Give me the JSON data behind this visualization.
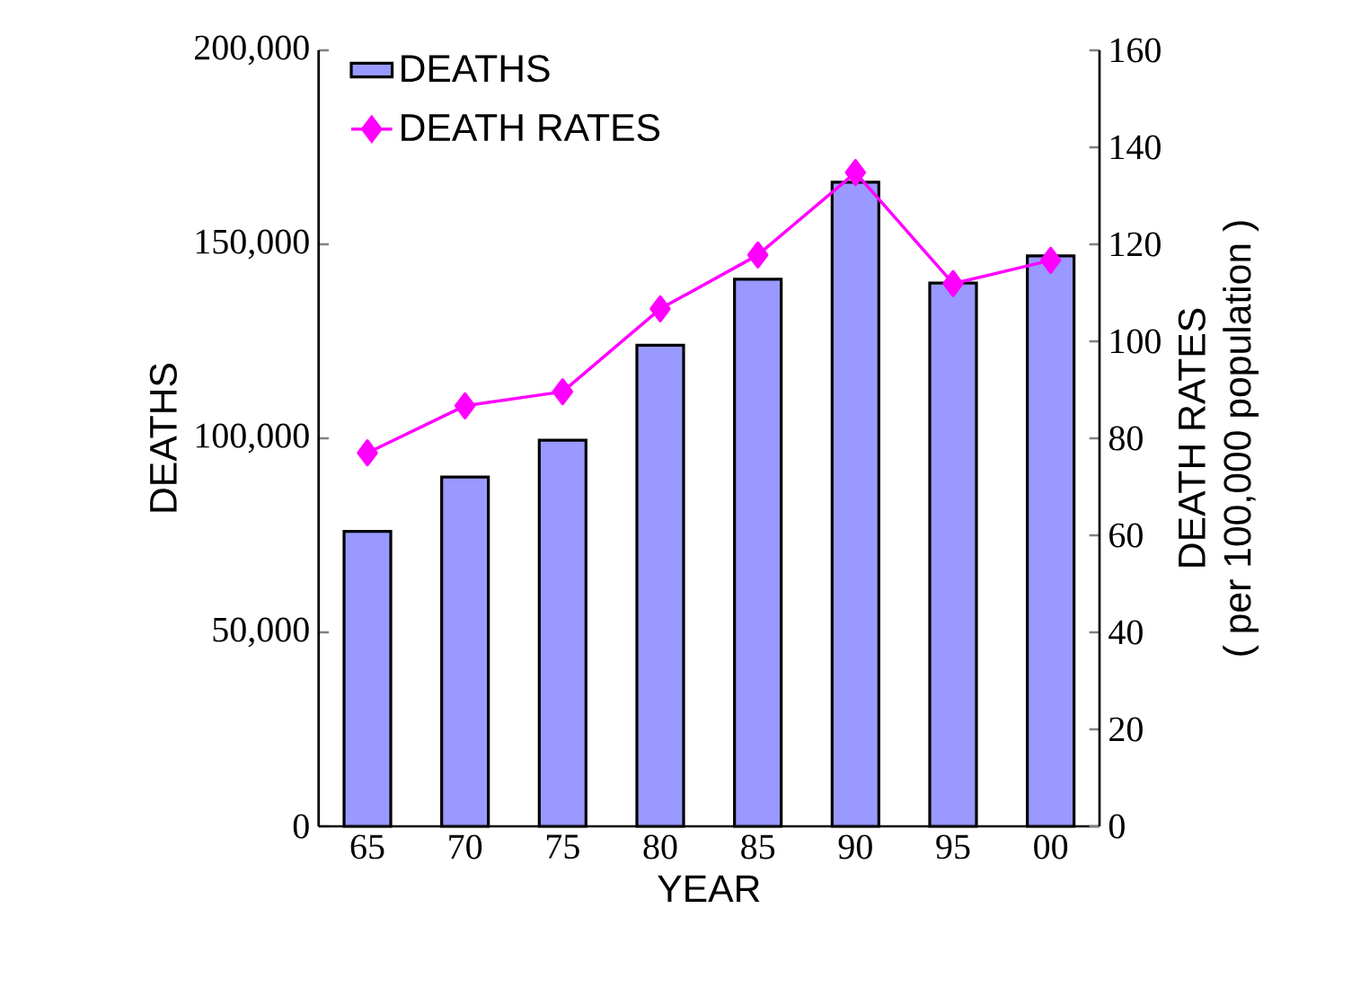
{
  "chart_data": {
    "type": "bar",
    "xlabel": "YEAR",
    "ylabel": "DEATHS",
    "y2label": "DEATH RATES\n( per 100,000 population )",
    "categories": [
      "65",
      "70",
      "75",
      "80",
      "85",
      "90",
      "95",
      "00"
    ],
    "series": [
      {
        "name": "DEATHS",
        "color": "#9999ff",
        "values": [
          76000,
          90000,
          99500,
          124000,
          141000,
          166000,
          140000,
          147000
        ]
      },
      {
        "name": "DEATH RATES",
        "type": "line",
        "axis": "y2",
        "color": "#ff00ff",
        "marker": "diamond",
        "values": [
          77,
          86.7,
          89.6,
          106.7,
          117.8,
          134.8,
          111.9,
          116.7
        ]
      }
    ],
    "ylim": [
      0,
      200000
    ],
    "yticks": [
      0,
      {
        "value": 50000,
        "label": "50,000"
      },
      {
        "value": 100000,
        "label": "100,000"
      },
      {
        "value": 150000,
        "label": "150,000"
      },
      {
        "value": 200000,
        "label": "200,000"
      }
    ],
    "y2lim": [
      0,
      160
    ],
    "y2ticks": [
      0,
      20,
      40,
      60,
      80,
      100,
      120,
      140,
      160
    ],
    "grid": false,
    "legend": "top left"
  }
}
